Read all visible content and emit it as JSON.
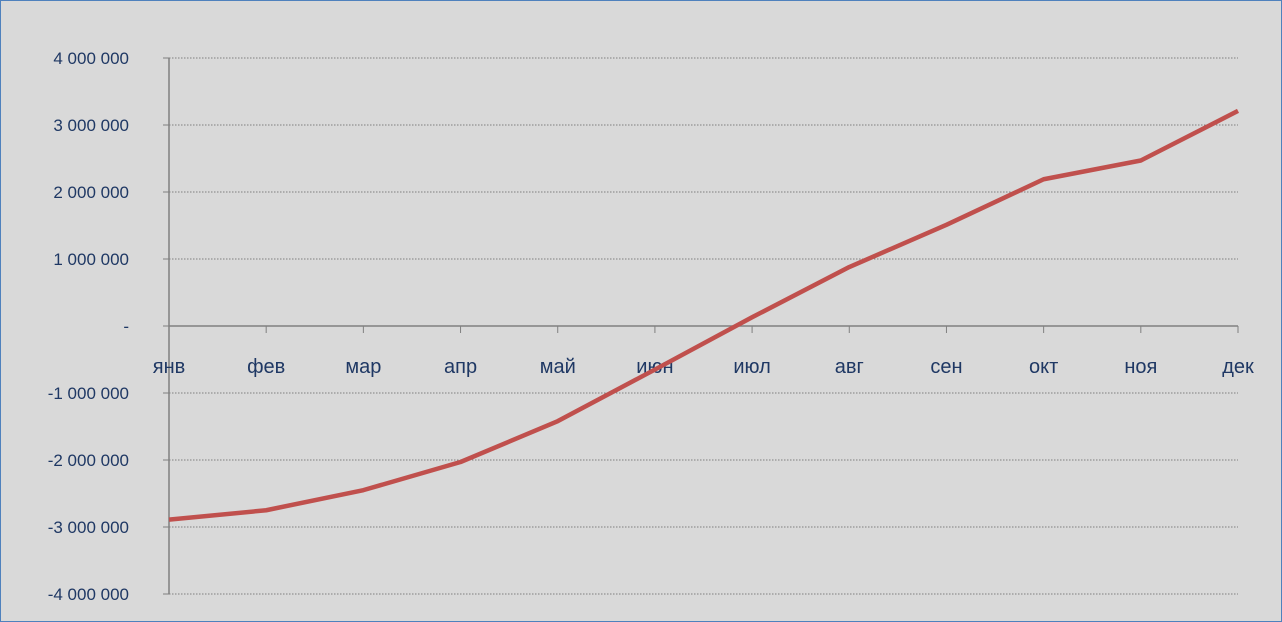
{
  "chart_data": {
    "type": "line",
    "title": "",
    "xlabel": "",
    "ylabel": "",
    "categories": [
      "янв",
      "фев",
      "мар",
      "апр",
      "май",
      "июн",
      "июл",
      "авг",
      "сен",
      "окт",
      "ноя",
      "дек"
    ],
    "series": [
      {
        "values": [
          -2890000,
          -2750000,
          -2450000,
          -2030000,
          -1420000,
          -650000,
          130000,
          880000,
          1510000,
          2190000,
          2470000,
          3210000
        ],
        "color": "#c0504d"
      }
    ],
    "ylim": [
      -4000000,
      4000000
    ],
    "yticks": [
      4000000,
      3000000,
      2000000,
      1000000,
      0,
      -1000000,
      -2000000,
      -3000000,
      -4000000
    ],
    "ytick_labels": [
      "4 000 000",
      "3 000 000",
      "2 000 000",
      "1 000 000",
      "-",
      "-1 000 000",
      "-2 000 000",
      "-3 000 000",
      "-4 000 000"
    ],
    "grid": true,
    "gridline_color": "#7f7f7f",
    "legend": "none",
    "background_color": "#d9d9d9",
    "axis_label_color": "#1f3864"
  }
}
